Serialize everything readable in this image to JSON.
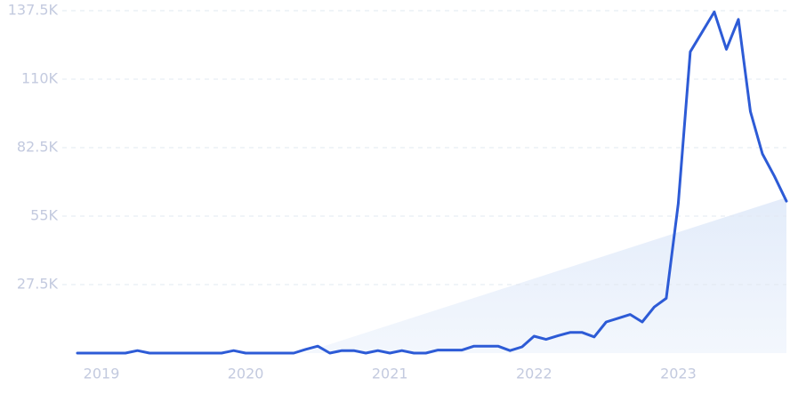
{
  "chart_data": {
    "type": "line",
    "categories": [
      null,
      null,
      "2019",
      null,
      null,
      null,
      null,
      null,
      null,
      null,
      null,
      null,
      null,
      null,
      "2020",
      null,
      null,
      null,
      null,
      null,
      null,
      null,
      null,
      null,
      null,
      null,
      "2021",
      null,
      null,
      null,
      null,
      null,
      null,
      null,
      null,
      null,
      null,
      null,
      "2022",
      null,
      null,
      null,
      null,
      null,
      null,
      null,
      null,
      null,
      null,
      null,
      "2023",
      null,
      null,
      null,
      null,
      null,
      null,
      null,
      null,
      null
    ],
    "series": [
      {
        "color": "#2d5bd6",
        "values": [
          0,
          0,
          0,
          0,
          0,
          1000,
          0,
          0,
          0,
          0,
          0,
          0,
          0,
          1000,
          0,
          0,
          0,
          0,
          0,
          1500,
          2800,
          0,
          1000,
          1000,
          0,
          1000,
          0,
          1000,
          0,
          0,
          1200,
          1200,
          1200,
          2800,
          2800,
          2800,
          1000,
          2500,
          6800,
          5500,
          7000,
          8300,
          8300,
          6500,
          12500,
          14000,
          15500,
          12500,
          18500,
          22000,
          60000,
          121000,
          129000,
          137000,
          122000,
          134000,
          97000,
          80000,
          71000,
          61000
        ]
      }
    ],
    "ylim": [
      0,
      137500
    ],
    "yticks": [
      {
        "value": 27500,
        "label": "27.5K"
      },
      {
        "value": 55000,
        "label": "55K"
      },
      {
        "value": 82500,
        "label": "82.5K"
      },
      {
        "value": 110000,
        "label": "110K"
      },
      {
        "value": 137500,
        "label": "137.5K"
      }
    ],
    "grid": true
  }
}
